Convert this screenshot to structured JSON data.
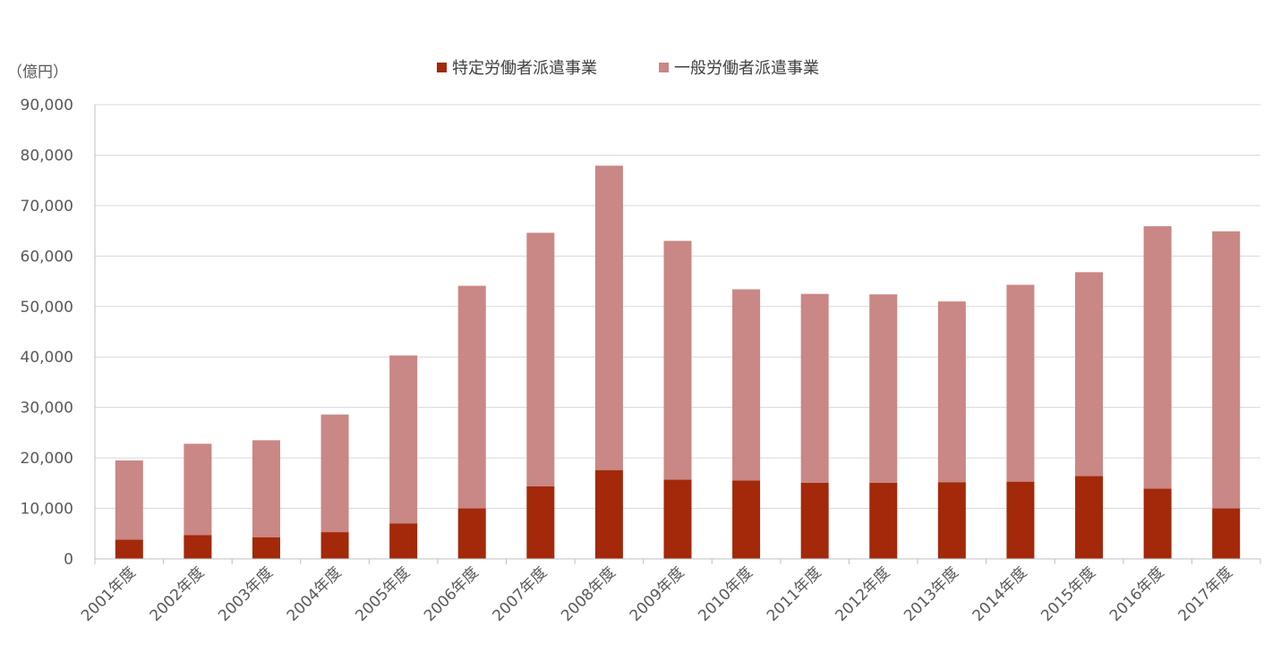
{
  "chart_data": {
    "type": "bar",
    "stacked": true,
    "unit_label": "（億円）",
    "categories": [
      "2001年度",
      "2002年度",
      "2003年度",
      "2004年度",
      "2005年度",
      "2006年度",
      "2007年度",
      "2008年度",
      "2009年度",
      "2010年度",
      "2011年度",
      "2012年度",
      "2013年度",
      "2014年度",
      "2015年度",
      "2016年度",
      "2017年度"
    ],
    "series": [
      {
        "name": "特定労働者派遣事業",
        "color": "#a3290a",
        "values": [
          3800,
          4700,
          4300,
          5300,
          7000,
          10000,
          14400,
          17600,
          15700,
          15500,
          15100,
          15100,
          15200,
          15300,
          16400,
          13900,
          10000
        ]
      },
      {
        "name": "一般労働者派遣事業",
        "color": "#c98785",
        "values": [
          15700,
          18100,
          19200,
          23300,
          33300,
          44100,
          50200,
          60300,
          47300,
          37900,
          37400,
          37300,
          35800,
          39000,
          40400,
          52000,
          54900
        ]
      }
    ],
    "ylim": [
      0,
      90000
    ],
    "yticks": [
      0,
      10000,
      20000,
      30000,
      40000,
      50000,
      60000,
      70000,
      80000,
      90000
    ],
    "ytick_labels": [
      "0",
      "10,000",
      "20,000",
      "30,000",
      "40,000",
      "50,000",
      "60,000",
      "70,000",
      "80,000",
      "90,000"
    ],
    "grid": true,
    "legend_position": "top-center"
  }
}
